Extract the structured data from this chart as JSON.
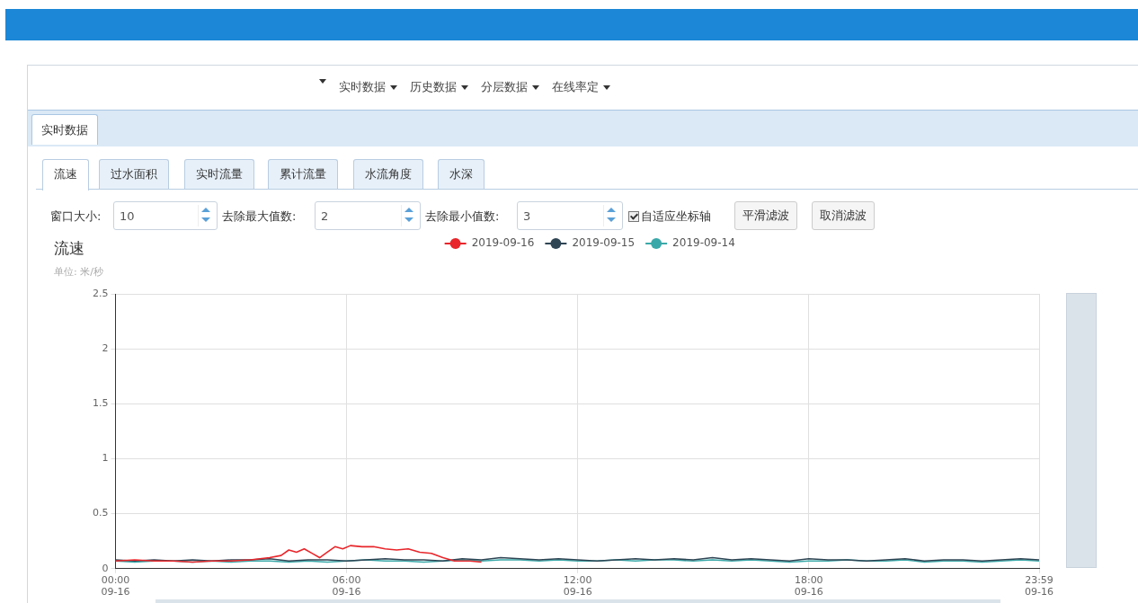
{
  "chart_data": {
    "type": "line",
    "title": "流速",
    "subtitle": "单位: 米/秒",
    "annotations": [
      "实时数据",
      "历史数据",
      "分层数据",
      "在线率定",
      "实时数据",
      "流速",
      "过水面积",
      "实时流量",
      "累计流量",
      "水流角度",
      "水深",
      "窗口大小:",
      "10",
      "去除最大值数:",
      "2",
      "去除最小值数:",
      "3",
      "自适应坐标轴",
      "平滑滤波",
      "取消滤波",
      "09-16",
      "09-16",
      "09-16",
      "09-16",
      "09-16"
    ],
    "x": [
      0,
      0.5,
      1,
      1.5,
      2,
      2.5,
      3,
      3.5,
      4,
      4.5,
      5,
      5.5,
      6,
      6.5,
      7,
      7.5,
      8,
      8.5,
      9,
      9.5,
      10,
      10.5,
      11,
      11.5,
      12,
      12.5,
      13,
      13.5,
      14,
      14.5,
      15,
      15.5,
      16,
      16.5,
      17,
      17.5,
      18,
      18.5,
      19,
      19.5,
      20,
      20.5,
      21,
      21.5,
      22,
      22.5,
      23,
      23.5,
      23.98
    ],
    "series": [
      {
        "name": "2019-09-16",
        "color": "#e8262b",
        "x": [
          0,
          0.5,
          1,
          1.5,
          2,
          2.5,
          3,
          3.5,
          4,
          4.3,
          4.5,
          4.7,
          4.9,
          5.1,
          5.3,
          5.5,
          5.7,
          5.9,
          6.1,
          6.4,
          6.7,
          7,
          7.3,
          7.6,
          7.9,
          8.2,
          8.5,
          8.8,
          9.2,
          9.5
        ],
        "values": [
          0.07,
          0.08,
          0.07,
          0.07,
          0.06,
          0.07,
          0.07,
          0.08,
          0.1,
          0.12,
          0.17,
          0.15,
          0.18,
          0.14,
          0.1,
          0.15,
          0.2,
          0.18,
          0.21,
          0.2,
          0.2,
          0.18,
          0.17,
          0.18,
          0.15,
          0.14,
          0.1,
          0.07,
          0.07,
          0.06
        ]
      },
      {
        "name": "2019-09-15",
        "color": "#2f4554",
        "values": [
          0.08,
          0.07,
          0.08,
          0.07,
          0.08,
          0.07,
          0.08,
          0.08,
          0.09,
          0.07,
          0.08,
          0.08,
          0.07,
          0.08,
          0.09,
          0.08,
          0.08,
          0.07,
          0.09,
          0.08,
          0.1,
          0.09,
          0.08,
          0.09,
          0.08,
          0.07,
          0.08,
          0.09,
          0.08,
          0.09,
          0.08,
          0.1,
          0.08,
          0.09,
          0.08,
          0.07,
          0.09,
          0.08,
          0.08,
          0.07,
          0.08,
          0.09,
          0.07,
          0.08,
          0.08,
          0.07,
          0.08,
          0.09,
          0.08
        ]
      },
      {
        "name": "2019-09-14",
        "color": "#3aa8a8",
        "values": [
          0.07,
          0.06,
          0.07,
          0.07,
          0.06,
          0.07,
          0.06,
          0.07,
          0.07,
          0.06,
          0.07,
          0.06,
          0.07,
          0.08,
          0.07,
          0.07,
          0.06,
          0.07,
          0.08,
          0.07,
          0.08,
          0.08,
          0.07,
          0.08,
          0.07,
          0.07,
          0.08,
          0.07,
          0.08,
          0.08,
          0.07,
          0.08,
          0.07,
          0.08,
          0.07,
          0.06,
          0.07,
          0.07,
          0.08,
          0.07,
          0.07,
          0.08,
          0.06,
          0.07,
          0.07,
          0.06,
          0.07,
          0.08,
          0.07
        ]
      }
    ],
    "xlim": [
      0,
      23.98
    ],
    "xticks": [
      {
        "value": 0,
        "label": "00:00"
      },
      {
        "value": 6,
        "label": "06:00"
      },
      {
        "value": 12,
        "label": "12:00"
      },
      {
        "value": 18,
        "label": "18:00"
      },
      {
        "value": 23.98,
        "label": "23:59"
      }
    ],
    "ylim": [
      0,
      2.5
    ],
    "yticks": [
      0,
      0.5,
      1,
      1.5,
      2,
      2.5
    ],
    "grid": true,
    "legend": "top",
    "marker": "none",
    "line_style": "solid"
  }
}
